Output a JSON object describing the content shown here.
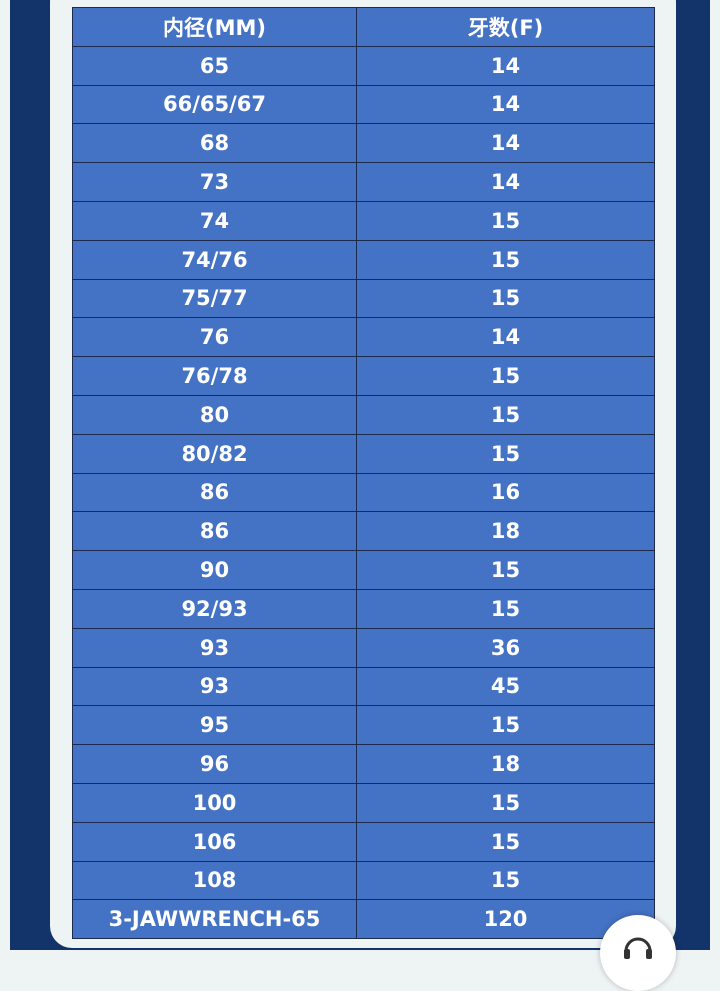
{
  "table": {
    "headers": [
      "内径(MM)",
      "牙数(F)"
    ],
    "rows": [
      [
        "65",
        "14"
      ],
      [
        "66/65/67",
        "14"
      ],
      [
        "68",
        "14"
      ],
      [
        "73",
        "14"
      ],
      [
        "74",
        "15"
      ],
      [
        "74/76",
        "15"
      ],
      [
        "75/77",
        "15"
      ],
      [
        "76",
        "14"
      ],
      [
        "76/78",
        "15"
      ],
      [
        "80",
        "15"
      ],
      [
        "80/82",
        "15"
      ],
      [
        "86",
        "16"
      ],
      [
        "86",
        "18"
      ],
      [
        "90",
        "15"
      ],
      [
        "92/93",
        "15"
      ],
      [
        "93",
        "36"
      ],
      [
        "93",
        "45"
      ],
      [
        "95",
        "15"
      ],
      [
        "96",
        "18"
      ],
      [
        "100",
        "15"
      ],
      [
        "106",
        "15"
      ],
      [
        "108",
        "15"
      ],
      [
        "3-JAWWRENCH-65",
        "120"
      ]
    ]
  },
  "colors": {
    "cell": "#4472c4",
    "frame": "#13336b",
    "border": "#1c2b4d"
  },
  "fab": {
    "icon": "customer-service-icon"
  }
}
